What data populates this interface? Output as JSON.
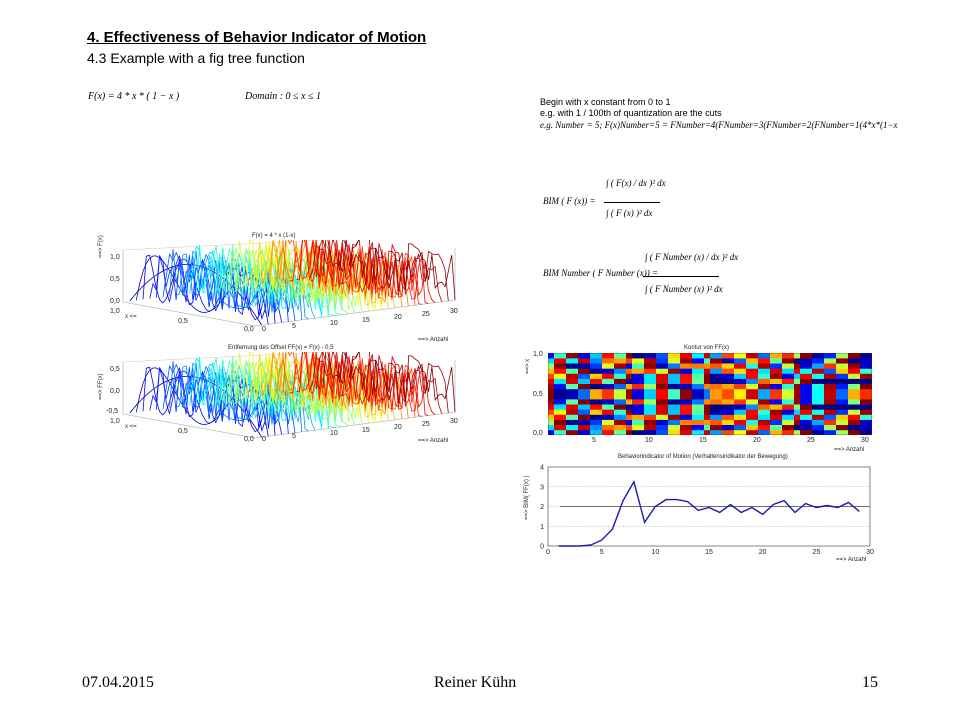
{
  "section": {
    "title": "4.   Effectiveness of Behavior Indicator of Motion",
    "subtitle": "4.3  Example with a fig tree function"
  },
  "formulas": {
    "function": "F(x) = 4 * x * ( 1 − x )",
    "domain": "Domain : 0  ≤ x ≤ 1",
    "begin_line1": "Begin with x constant from 0 to 1",
    "begin_line2": "e.g. with 1 / 100th of quantization are the cuts",
    "example": "e.g. Number = 5;  F(x)Number=5 = FNumber=4(FNumber=3(FNumber=2(FNumber=1(4*x*(1−x",
    "bim_lhs": "BIM ( F (x)) =",
    "bim_num": "∫ ( F(x) / dx )² dx",
    "bim_den": "∫ ( F (x) )² dx",
    "bim_number_lhs": "BIM Number ( F Number (x)) =",
    "bim_number_num": "∫ ( F Number (x) / dx )² dx",
    "bim_number_den": "∫ ( F Number (x) )² dx"
  },
  "plot1": {
    "title": "F(x) = 4 * x (1-x)",
    "z_label": "==> F(x)",
    "x_label": "x <=",
    "anzahl_label": "==> Anzahl",
    "z_ticks": [
      "1,0",
      "0,5",
      "0,0"
    ],
    "x_ticks": [
      "1,0",
      "0,5",
      "0,0"
    ],
    "n_ticks": [
      "0",
      "5",
      "10",
      "15",
      "20",
      "25",
      "30"
    ]
  },
  "plot2": {
    "title": "Entfernung des Offset FF(x) = F(x) - 0,5",
    "z_label": "==> FF(x)",
    "x_label": "x <=",
    "anzahl_label": "==> Anzahl",
    "z_ticks": [
      "0,5",
      "0,0",
      "-0,5"
    ],
    "x_ticks": [
      "1,0",
      "0,5",
      "0,0"
    ],
    "n_ticks": [
      "0",
      "5",
      "10",
      "15",
      "20",
      "25",
      "30"
    ]
  },
  "plot3": {
    "title": "Kontur von FF(x)",
    "y_label": "==> x",
    "x_label": "==> Anzahl",
    "y_ticks": [
      "1,0",
      "0,5",
      "0,0"
    ],
    "x_ticks": [
      "5",
      "10",
      "15",
      "20",
      "25",
      "30"
    ]
  },
  "chart_data": {
    "type": "line",
    "title": "Behaviorindicator of Motion  (Verhaltensindikator der Bewegung)",
    "xlabel": "==> Anzahl",
    "ylabel": "==> BIM( FF(x) )",
    "xlim": [
      0,
      30
    ],
    "ylim": [
      0,
      4
    ],
    "x_ticks": [
      0,
      5,
      10,
      15,
      20,
      25,
      30
    ],
    "y_ticks": [
      0,
      1,
      2,
      3,
      4
    ],
    "grid": "dotted horizontal",
    "reference_line": 2,
    "x": [
      1,
      2,
      3,
      4,
      5,
      6,
      7,
      8,
      9,
      10,
      11,
      12,
      13,
      14,
      15,
      16,
      17,
      18,
      19,
      20,
      21,
      22,
      23,
      24,
      25,
      26,
      27,
      28,
      29,
      30
    ],
    "values": [
      0,
      0,
      0,
      0.05,
      0.3,
      0.85,
      2.3,
      3.25,
      1.2,
      2.0,
      2.35,
      2.35,
      2.25,
      1.8,
      1.95,
      1.7,
      2.1,
      1.7,
      1.95,
      1.6,
      2.1,
      2.3,
      1.7,
      2.15,
      1.95,
      2.05,
      1.95,
      2.2,
      1.75,
      null
    ],
    "line_color": "#1a1ab4"
  },
  "footer": {
    "date": "07.04.2015",
    "author": "Reiner Kühn",
    "page": "15"
  }
}
